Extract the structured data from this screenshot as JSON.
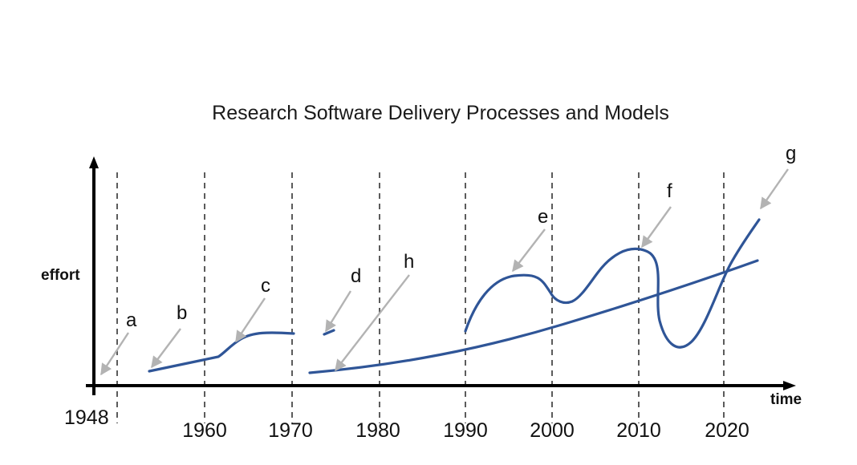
{
  "title": "Research Software Delivery Processes and Models",
  "axes": {
    "x_label": "time",
    "y_label": "effort",
    "origin_label": "1948",
    "decade_labels": [
      "1960",
      "1970",
      "1980",
      "1990",
      "2000",
      "2010",
      "2020"
    ]
  },
  "markers": [
    {
      "label": "a",
      "year": 1948.5
    },
    {
      "label": "b",
      "year": 1954
    },
    {
      "label": "c",
      "year": 1964
    },
    {
      "label": "d",
      "year": 1974
    },
    {
      "label": "h",
      "year": 1975
    },
    {
      "label": "e",
      "year": 1995
    },
    {
      "label": "f",
      "year": 2010
    },
    {
      "label": "g",
      "year": 2023.5
    }
  ],
  "colors": {
    "curve": "#2f5597",
    "arrow": "#b3b3b3",
    "axis": "#000000",
    "gridline": "#333333"
  }
}
